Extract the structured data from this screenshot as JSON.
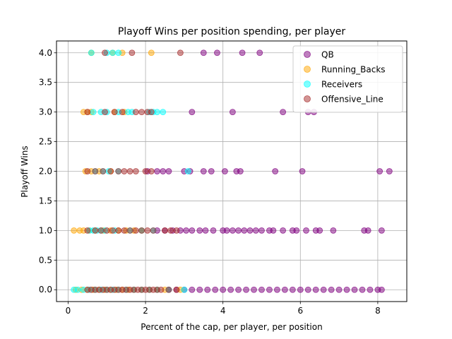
{
  "chart_data": {
    "type": "scatter",
    "title": "Playoff Wins per position spending, per player",
    "xlabel": "Percent of the cap, per player, per position",
    "ylabel": "Playoff Wins",
    "xlim": [
      -0.3,
      8.75
    ],
    "ylim": [
      -0.2,
      4.2
    ],
    "xticks": [
      0,
      2,
      4,
      6,
      8
    ],
    "yticks": [
      0.0,
      0.5,
      1.0,
      1.5,
      2.0,
      2.5,
      3.0,
      3.5,
      4.0
    ],
    "xtick_labels": [
      "0",
      "2",
      "4",
      "6",
      "8"
    ],
    "ytick_labels": [
      "0.0",
      "0.5",
      "1.0",
      "1.5",
      "2.0",
      "2.5",
      "3.0",
      "3.5",
      "4.0"
    ],
    "grid": true,
    "legend_position": "top-right",
    "series": [
      {
        "name": "QB",
        "color": "#800080",
        "points": [
          [
            3.5,
            4
          ],
          [
            3.85,
            4
          ],
          [
            4.5,
            4
          ],
          [
            4.95,
            4
          ],
          [
            3.2,
            3
          ],
          [
            4.25,
            3
          ],
          [
            5.55,
            3
          ],
          [
            6.2,
            3
          ],
          [
            6.35,
            3
          ],
          [
            2.05,
            2
          ],
          [
            2.3,
            2
          ],
          [
            2.45,
            2
          ],
          [
            2.6,
            2
          ],
          [
            3.0,
            2
          ],
          [
            3.15,
            2
          ],
          [
            3.5,
            2
          ],
          [
            3.7,
            2
          ],
          [
            4.05,
            2
          ],
          [
            4.35,
            2
          ],
          [
            4.45,
            2
          ],
          [
            5.35,
            2
          ],
          [
            6.05,
            2
          ],
          [
            8.05,
            2
          ],
          [
            8.3,
            2
          ],
          [
            2.3,
            1
          ],
          [
            2.5,
            1
          ],
          [
            2.7,
            1
          ],
          [
            2.9,
            1
          ],
          [
            3.05,
            1
          ],
          [
            3.2,
            1
          ],
          [
            3.4,
            1
          ],
          [
            3.55,
            1
          ],
          [
            3.75,
            1
          ],
          [
            4.0,
            1
          ],
          [
            4.1,
            1
          ],
          [
            4.25,
            1
          ],
          [
            4.4,
            1
          ],
          [
            4.55,
            1
          ],
          [
            4.7,
            1
          ],
          [
            4.85,
            1
          ],
          [
            5.0,
            1
          ],
          [
            5.2,
            1
          ],
          [
            5.3,
            1
          ],
          [
            5.55,
            1
          ],
          [
            5.8,
            1
          ],
          [
            5.9,
            1
          ],
          [
            6.15,
            1
          ],
          [
            6.4,
            1
          ],
          [
            6.5,
            1
          ],
          [
            6.85,
            1
          ],
          [
            7.65,
            1
          ],
          [
            7.75,
            1
          ],
          [
            8.1,
            1
          ],
          [
            2.6,
            0
          ],
          [
            2.8,
            0
          ],
          [
            3.0,
            0
          ],
          [
            3.2,
            0
          ],
          [
            3.4,
            0
          ],
          [
            3.6,
            0
          ],
          [
            3.8,
            0
          ],
          [
            4.0,
            0
          ],
          [
            4.2,
            0
          ],
          [
            4.4,
            0
          ],
          [
            4.6,
            0
          ],
          [
            4.8,
            0
          ],
          [
            5.0,
            0
          ],
          [
            5.2,
            0
          ],
          [
            5.4,
            0
          ],
          [
            5.6,
            0
          ],
          [
            5.8,
            0
          ],
          [
            6.0,
            0
          ],
          [
            6.2,
            0
          ],
          [
            6.4,
            0
          ],
          [
            6.6,
            0
          ],
          [
            6.8,
            0
          ],
          [
            7.0,
            0
          ],
          [
            7.2,
            0
          ],
          [
            7.4,
            0
          ],
          [
            7.6,
            0
          ],
          [
            7.8,
            0
          ],
          [
            8.0,
            0
          ],
          [
            8.1,
            0
          ]
        ]
      },
      {
        "name": "Running_Backs",
        "color": "#FFA500",
        "points": [
          [
            0.6,
            4
          ],
          [
            1.15,
            4
          ],
          [
            1.4,
            4
          ],
          [
            2.15,
            4
          ],
          [
            0.4,
            3
          ],
          [
            0.5,
            3
          ],
          [
            0.6,
            3
          ],
          [
            1.2,
            3
          ],
          [
            1.45,
            3
          ],
          [
            0.45,
            2
          ],
          [
            0.6,
            2
          ],
          [
            0.8,
            2
          ],
          [
            1.1,
            2
          ],
          [
            0.15,
            1
          ],
          [
            0.3,
            1
          ],
          [
            0.4,
            1
          ],
          [
            0.55,
            1
          ],
          [
            0.7,
            1
          ],
          [
            0.9,
            1
          ],
          [
            1.1,
            1
          ],
          [
            1.3,
            1
          ],
          [
            1.5,
            1
          ],
          [
            1.7,
            1
          ],
          [
            1.9,
            1
          ],
          [
            0.2,
            0
          ],
          [
            0.35,
            0
          ],
          [
            0.5,
            0
          ],
          [
            0.65,
            0
          ],
          [
            0.8,
            0
          ],
          [
            0.95,
            0
          ],
          [
            1.1,
            0
          ],
          [
            1.25,
            0
          ],
          [
            1.4,
            0
          ],
          [
            1.55,
            0
          ],
          [
            1.7,
            0
          ],
          [
            1.9,
            0
          ],
          [
            2.1,
            0
          ],
          [
            2.3,
            0
          ],
          [
            2.5,
            0
          ],
          [
            2.9,
            0
          ]
        ]
      },
      {
        "name": "Receivers",
        "color": "#00FFFF",
        "points": [
          [
            0.6,
            4
          ],
          [
            1.0,
            4
          ],
          [
            1.15,
            4
          ],
          [
            1.3,
            4
          ],
          [
            0.65,
            3
          ],
          [
            0.85,
            3
          ],
          [
            1.0,
            3
          ],
          [
            1.3,
            3
          ],
          [
            1.55,
            3
          ],
          [
            1.65,
            3
          ],
          [
            2.1,
            3
          ],
          [
            2.2,
            3
          ],
          [
            2.3,
            3
          ],
          [
            2.45,
            3
          ],
          [
            0.7,
            2
          ],
          [
            0.9,
            2
          ],
          [
            1.05,
            2
          ],
          [
            1.3,
            2
          ],
          [
            3.1,
            2
          ],
          [
            0.55,
            1
          ],
          [
            0.65,
            1
          ],
          [
            0.75,
            1
          ],
          [
            0.85,
            1
          ],
          [
            0.95,
            1
          ],
          [
            1.2,
            1
          ],
          [
            1.6,
            1
          ],
          [
            1.9,
            1
          ],
          [
            2.2,
            1
          ],
          [
            0.15,
            0
          ],
          [
            0.25,
            0
          ],
          [
            0.4,
            0
          ],
          [
            0.55,
            0
          ],
          [
            0.7,
            0
          ],
          [
            0.85,
            0
          ],
          [
            1.0,
            0
          ],
          [
            1.15,
            0
          ],
          [
            1.3,
            0
          ],
          [
            1.5,
            0
          ],
          [
            1.7,
            0
          ],
          [
            1.9,
            0
          ],
          [
            2.1,
            0
          ],
          [
            2.3,
            0
          ],
          [
            2.6,
            0
          ],
          [
            3.0,
            0
          ]
        ]
      },
      {
        "name": "Offensive_Line",
        "color": "#A52A2A",
        "points": [
          [
            0.95,
            4
          ],
          [
            1.65,
            4
          ],
          [
            2.9,
            4
          ],
          [
            0.5,
            3
          ],
          [
            0.95,
            3
          ],
          [
            1.2,
            3
          ],
          [
            1.4,
            3
          ],
          [
            1.75,
            3
          ],
          [
            1.9,
            3
          ],
          [
            2.05,
            3
          ],
          [
            2.15,
            3
          ],
          [
            0.5,
            2
          ],
          [
            0.7,
            2
          ],
          [
            0.9,
            2
          ],
          [
            1.1,
            2
          ],
          [
            1.3,
            2
          ],
          [
            1.45,
            2
          ],
          [
            1.6,
            2
          ],
          [
            1.75,
            2
          ],
          [
            2.0,
            2
          ],
          [
            2.15,
            2
          ],
          [
            0.5,
            1
          ],
          [
            0.7,
            1
          ],
          [
            0.85,
            1
          ],
          [
            1.0,
            1
          ],
          [
            1.15,
            1
          ],
          [
            1.3,
            1
          ],
          [
            1.45,
            1
          ],
          [
            1.6,
            1
          ],
          [
            1.75,
            1
          ],
          [
            1.9,
            1
          ],
          [
            2.05,
            1
          ],
          [
            2.2,
            1
          ],
          [
            2.5,
            1
          ],
          [
            2.65,
            1
          ],
          [
            2.8,
            1
          ],
          [
            0.5,
            0
          ],
          [
            0.6,
            0
          ],
          [
            0.7,
            0
          ],
          [
            0.8,
            0
          ],
          [
            0.9,
            0
          ],
          [
            1.0,
            0
          ],
          [
            1.1,
            0
          ],
          [
            1.2,
            0
          ],
          [
            1.3,
            0
          ],
          [
            1.4,
            0
          ],
          [
            1.5,
            0
          ],
          [
            1.6,
            0
          ],
          [
            1.7,
            0
          ],
          [
            1.8,
            0
          ],
          [
            1.9,
            0
          ],
          [
            2.0,
            0
          ],
          [
            2.1,
            0
          ],
          [
            2.2,
            0
          ],
          [
            2.3,
            0
          ],
          [
            2.4,
            0
          ],
          [
            2.6,
            0
          ],
          [
            2.8,
            0
          ]
        ]
      }
    ]
  }
}
